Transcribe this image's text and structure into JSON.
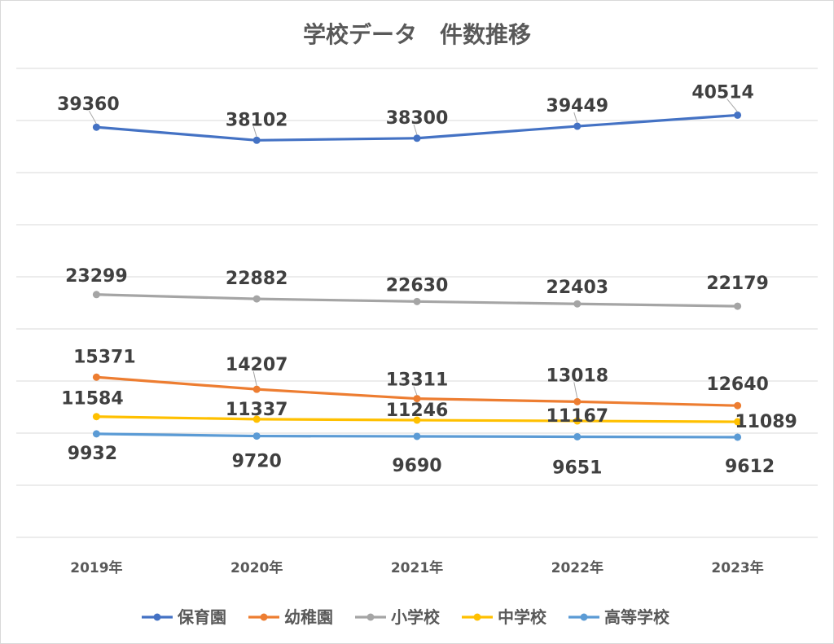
{
  "chart_data": {
    "type": "line",
    "title": "学校データ　件数推移",
    "categories": [
      "2019年",
      "2020年",
      "2021年",
      "2022年",
      "2023年"
    ],
    "ylim": [
      0,
      45000
    ],
    "grid": true,
    "legend_position": "bottom",
    "series": [
      {
        "name": "保育園",
        "color": "#4472C4",
        "values": [
          39360,
          38102,
          38300,
          39449,
          40514
        ]
      },
      {
        "name": "幼稚園",
        "color": "#ED7D31",
        "values": [
          15371,
          14207,
          13311,
          13018,
          12640
        ]
      },
      {
        "name": "小学校",
        "color": "#A5A5A5",
        "values": [
          23299,
          22882,
          22630,
          22403,
          22179
        ]
      },
      {
        "name": "中学校",
        "color": "#FFC000",
        "values": [
          11584,
          11337,
          11246,
          11167,
          11089
        ]
      },
      {
        "name": "高等学校",
        "color": "#5B9BD5",
        "values": [
          9932,
          9720,
          9690,
          9651,
          9612
        ]
      }
    ]
  }
}
